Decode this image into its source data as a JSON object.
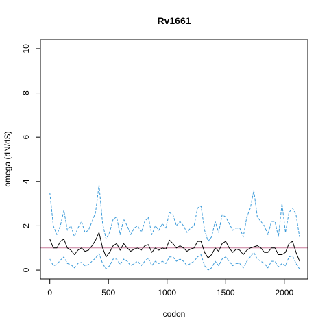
{
  "chart_data": {
    "type": "line",
    "title": "Rv1661",
    "xlabel": "codon",
    "ylabel": "omega (dN/dS)",
    "xlim": [
      -80,
      2200
    ],
    "ylim": [
      -0.4,
      10.4
    ],
    "x_ticks": [
      0,
      500,
      1000,
      1500,
      2000
    ],
    "y_ticks": [
      0,
      2,
      4,
      6,
      8,
      10
    ],
    "reference_line": {
      "y": 1,
      "color": "#c77c9a"
    },
    "grid": false,
    "legend": "none",
    "x": [
      0,
      30,
      60,
      90,
      120,
      150,
      180,
      210,
      240,
      270,
      300,
      330,
      360,
      390,
      420,
      450,
      480,
      510,
      540,
      570,
      600,
      630,
      660,
      690,
      720,
      750,
      780,
      810,
      840,
      870,
      900,
      930,
      960,
      990,
      1020,
      1050,
      1080,
      1110,
      1140,
      1170,
      1200,
      1230,
      1260,
      1290,
      1320,
      1350,
      1380,
      1410,
      1440,
      1470,
      1500,
      1530,
      1560,
      1590,
      1620,
      1650,
      1680,
      1710,
      1740,
      1770,
      1800,
      1830,
      1860,
      1890,
      1920,
      1950,
      1980,
      2010,
      2040,
      2070,
      2100,
      2130
    ],
    "series": [
      {
        "role": "estimate",
        "color": "#000000",
        "dash": "solid",
        "values": [
          1.4,
          1.0,
          1.0,
          1.3,
          1.4,
          1.0,
          0.9,
          0.7,
          0.9,
          1.0,
          0.85,
          0.9,
          1.1,
          1.35,
          1.7,
          1.0,
          0.6,
          0.8,
          1.1,
          1.2,
          0.9,
          1.2,
          1.0,
          0.85,
          0.95,
          1.0,
          0.9,
          1.1,
          1.15,
          0.8,
          1.0,
          0.9,
          1.0,
          0.95,
          1.35,
          1.2,
          1.0,
          1.1,
          1.0,
          0.85,
          0.95,
          1.0,
          1.3,
          1.3,
          0.8,
          0.55,
          0.7,
          1.0,
          0.85,
          1.2,
          1.3,
          1.0,
          0.8,
          0.95,
          0.9,
          0.7,
          0.9,
          1.0,
          1.05,
          1.1,
          1.0,
          0.8,
          0.8,
          1.0,
          1.0,
          0.7,
          0.7,
          0.8,
          1.2,
          1.3,
          0.8,
          0.4
        ]
      },
      {
        "role": "upper-bound",
        "color": "#3a9ad9",
        "dash": "dashed",
        "values": [
          3.5,
          2.0,
          1.6,
          2.0,
          2.7,
          1.8,
          2.0,
          1.5,
          1.9,
          2.2,
          1.7,
          1.8,
          2.2,
          2.6,
          3.85,
          2.1,
          1.4,
          1.7,
          2.3,
          2.4,
          1.6,
          2.3,
          2.0,
          1.6,
          1.9,
          2.0,
          1.7,
          2.2,
          2.4,
          1.6,
          2.0,
          1.8,
          2.1,
          1.9,
          2.6,
          2.5,
          2.0,
          2.2,
          2.0,
          1.7,
          1.9,
          2.0,
          2.8,
          2.9,
          1.8,
          1.3,
          1.5,
          2.2,
          1.7,
          2.5,
          2.4,
          2.1,
          1.8,
          1.9,
          1.9,
          1.5,
          2.4,
          2.8,
          3.6,
          2.4,
          2.2,
          2.0,
          1.6,
          2.2,
          2.2,
          1.5,
          3.0,
          1.7,
          2.6,
          2.8,
          2.5,
          1.5
        ]
      },
      {
        "role": "lower-bound",
        "color": "#3a9ad9",
        "dash": "dashed",
        "values": [
          0.5,
          0.2,
          0.25,
          0.45,
          0.6,
          0.3,
          0.25,
          0.1,
          0.3,
          0.35,
          0.2,
          0.25,
          0.4,
          0.55,
          0.75,
          0.3,
          0.05,
          0.2,
          0.5,
          0.5,
          0.25,
          0.5,
          0.4,
          0.2,
          0.3,
          0.4,
          0.2,
          0.4,
          0.55,
          0.2,
          0.4,
          0.3,
          0.4,
          0.3,
          0.6,
          0.6,
          0.4,
          0.5,
          0.4,
          0.2,
          0.3,
          0.4,
          0.6,
          0.7,
          0.2,
          0.0,
          0.1,
          0.4,
          0.2,
          0.5,
          0.6,
          0.4,
          0.2,
          0.3,
          0.3,
          0.1,
          0.4,
          0.6,
          0.8,
          0.5,
          0.4,
          0.3,
          0.1,
          0.4,
          0.4,
          0.15,
          0.3,
          0.2,
          0.6,
          0.65,
          0.3,
          0.05
        ]
      }
    ]
  }
}
